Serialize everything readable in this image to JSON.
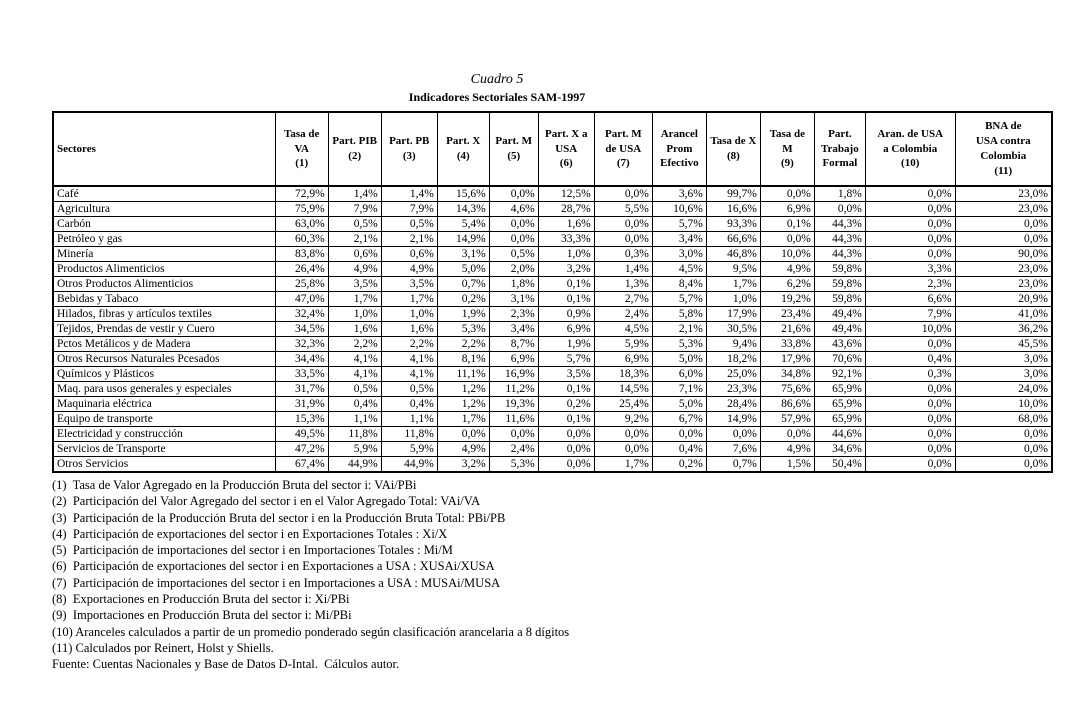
{
  "title": "Cuadro 5",
  "subtitle": "Indicadores Sectoriales SAM-1997",
  "table": {
    "sector_header": "Sectores",
    "columns": [
      "Tasa de\nVA\n(1)",
      "Part. PIB\n(2)",
      "Part. PB\n(3)",
      "Part. X\n(4)",
      "Part. M\n(5)",
      "Part. X a\nUSA\n(6)",
      "Part. M\nde USA\n(7)",
      "Arancel\nProm\nEfectivo",
      "Tasa de X\n(8)",
      "Tasa de M\n(9)",
      "Part.\nTrabajo\nFormal",
      "Aran. de USA\na Colombia\n(10)",
      "BNA de\nUSA contra\nColombia\n(11)"
    ],
    "rows": [
      {
        "sector": "Café",
        "values": [
          "72,9%",
          "1,4%",
          "1,4%",
          "15,6%",
          "0,0%",
          "12,5%",
          "0,0%",
          "3,6%",
          "99,7%",
          "0,0%",
          "1,8%",
          "0,0%",
          "23,0%"
        ]
      },
      {
        "sector": "Agricultura",
        "values": [
          "75,9%",
          "7,9%",
          "7,9%",
          "14,3%",
          "4,6%",
          "28,7%",
          "5,5%",
          "10,6%",
          "16,6%",
          "6,9%",
          "0,0%",
          "0,0%",
          "23,0%"
        ]
      },
      {
        "sector": "Carbón",
        "values": [
          "63,0%",
          "0,5%",
          "0,5%",
          "5,4%",
          "0,0%",
          "1,6%",
          "0,0%",
          "5,7%",
          "93,3%",
          "0,1%",
          "44,3%",
          "0,0%",
          "0,0%"
        ]
      },
      {
        "sector": "Petróleo y gas",
        "values": [
          "60,3%",
          "2,1%",
          "2,1%",
          "14,9%",
          "0,0%",
          "33,3%",
          "0,0%",
          "3,4%",
          "66,6%",
          "0,0%",
          "44,3%",
          "0,0%",
          "0,0%"
        ]
      },
      {
        "sector": "Minería",
        "values": [
          "83,8%",
          "0,6%",
          "0,6%",
          "3,1%",
          "0,5%",
          "1,0%",
          "0,3%",
          "3,0%",
          "46,8%",
          "10,0%",
          "44,3%",
          "0,0%",
          "90,0%"
        ]
      },
      {
        "sector": "Productos Alimenticios",
        "values": [
          "26,4%",
          "4,9%",
          "4,9%",
          "5,0%",
          "2,0%",
          "3,2%",
          "1,4%",
          "4,5%",
          "9,5%",
          "4,9%",
          "59,8%",
          "3,3%",
          "23,0%"
        ]
      },
      {
        "sector": "Otros Productos Alimenticios",
        "values": [
          "25,8%",
          "3,5%",
          "3,5%",
          "0,7%",
          "1,8%",
          "0,1%",
          "1,3%",
          "8,4%",
          "1,7%",
          "6,2%",
          "59,8%",
          "2,3%",
          "23,0%"
        ]
      },
      {
        "sector": "Bebidas y Tabaco",
        "values": [
          "47,0%",
          "1,7%",
          "1,7%",
          "0,2%",
          "3,1%",
          "0,1%",
          "2,7%",
          "5,7%",
          "1,0%",
          "19,2%",
          "59,8%",
          "6,6%",
          "20,9%"
        ]
      },
      {
        "sector": "Hilados, fibras y artículos textiles",
        "values": [
          "32,4%",
          "1,0%",
          "1,0%",
          "1,9%",
          "2,3%",
          "0,9%",
          "2,4%",
          "5,8%",
          "17,9%",
          "23,4%",
          "49,4%",
          "7,9%",
          "41,0%"
        ]
      },
      {
        "sector": "Tejidos, Prendas de vestir y Cuero",
        "values": [
          "34,5%",
          "1,6%",
          "1,6%",
          "5,3%",
          "3,4%",
          "6,9%",
          "4,5%",
          "2,1%",
          "30,5%",
          "21,6%",
          "49,4%",
          "10,0%",
          "36,2%"
        ]
      },
      {
        "sector": "Pctos Metálicos y de Madera",
        "values": [
          "32,3%",
          "2,2%",
          "2,2%",
          "2,2%",
          "8,7%",
          "1,9%",
          "5,9%",
          "5,3%",
          "9,4%",
          "33,8%",
          "43,6%",
          "0,0%",
          "45,5%"
        ]
      },
      {
        "sector": "Otros Recursos Naturales Pcesados",
        "values": [
          "34,4%",
          "4,1%",
          "4,1%",
          "8,1%",
          "6,9%",
          "5,7%",
          "6,9%",
          "5,0%",
          "18,2%",
          "17,9%",
          "70,6%",
          "0,4%",
          "3,0%"
        ]
      },
      {
        "sector": "Químicos y Plásticos",
        "values": [
          "33,5%",
          "4,1%",
          "4,1%",
          "11,1%",
          "16,9%",
          "3,5%",
          "18,3%",
          "6,0%",
          "25,0%",
          "34,8%",
          "92,1%",
          "0,3%",
          "3,0%"
        ]
      },
      {
        "sector": "Maq. para usos generales y especiales",
        "values": [
          "31,7%",
          "0,5%",
          "0,5%",
          "1,2%",
          "11,2%",
          "0,1%",
          "14,5%",
          "7,1%",
          "23,3%",
          "75,6%",
          "65,9%",
          "0,0%",
          "24,0%"
        ]
      },
      {
        "sector": "Maquinaria eléctrica",
        "values": [
          "31,9%",
          "0,4%",
          "0,4%",
          "1,2%",
          "19,3%",
          "0,2%",
          "25,4%",
          "5,0%",
          "28,4%",
          "86,6%",
          "65,9%",
          "0,0%",
          "10,0%"
        ]
      },
      {
        "sector": "Equipo de transporte",
        "values": [
          "15,3%",
          "1,1%",
          "1,1%",
          "1,7%",
          "11,6%",
          "0,1%",
          "9,2%",
          "6,7%",
          "14,9%",
          "57,9%",
          "65,9%",
          "0,0%",
          "68,0%"
        ]
      },
      {
        "sector": "Electricidad y construcción",
        "values": [
          "49,5%",
          "11,8%",
          "11,8%",
          "0,0%",
          "0,0%",
          "0,0%",
          "0,0%",
          "0,0%",
          "0,0%",
          "0,0%",
          "44,6%",
          "0,0%",
          "0,0%"
        ]
      },
      {
        "sector": "Servicios de Transporte",
        "values": [
          "47,2%",
          "5,9%",
          "5,9%",
          "4,9%",
          "2,4%",
          "0,0%",
          "0,0%",
          "0,4%",
          "7,6%",
          "4,9%",
          "34,6%",
          "0,0%",
          "0,0%"
        ]
      },
      {
        "sector": "Otros Servicios",
        "values": [
          "67,4%",
          "44,9%",
          "44,9%",
          "3,2%",
          "5,3%",
          "0,0%",
          "1,7%",
          "0,2%",
          "0,7%",
          "1,5%",
          "50,4%",
          "0,0%",
          "0,0%"
        ]
      }
    ]
  },
  "footnotes": [
    "(1)  Tasa de Valor Agregado en la Producción Bruta del sector i: VAi/PBi",
    "(2)  Participación del Valor Agregado del sector i en el Valor Agregado Total: VAi/VA",
    "(3)  Participación de la Producción Bruta del sector i en la Producción Bruta Total: PBi/PB",
    "(4)  Participación de exportaciones del sector i en Exportaciones Totales : Xi/X",
    "(5)  Participación de importaciones del sector i en Importaciones Totales : Mi/M",
    "(6)  Participación de exportaciones del sector i en Exportaciones a USA : XUSAi/XUSA",
    "(7)  Participación de importaciones del sector i en Importaciones a USA : MUSAi/MUSA",
    "(8)  Exportaciones en Producción Bruta del sector i: Xi/PBi",
    "(9)  Importaciones en Producción Bruta del sector i: Mi/PBi",
    "(10) Aranceles calculados a partir de un promedio ponderado según clasificación arancelaria a 8 dígitos",
    "(11) Calculados por Reinert, Holst y Shiells."
  ],
  "fuente": "Fuente: Cuentas Nacionales y Base de Datos D-Intal.  Cálculos autor."
}
